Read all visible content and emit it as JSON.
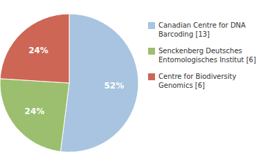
{
  "chart_data": {
    "type": "pie",
    "categories": [
      "Canadian Centre for DNA\nBarcoding [13]",
      "Senckenberg Deutsches\nEntomologisches Institut [6]",
      "Centre for Biodiversity\nGenomics [6]"
    ],
    "values": [
      52,
      24,
      24
    ],
    "value_labels": [
      "52%",
      "24%",
      "24%"
    ],
    "colors": [
      "#a8c4e0",
      "#9bbf6e",
      "#cd6655"
    ],
    "data_labels": true,
    "legend": "right"
  }
}
